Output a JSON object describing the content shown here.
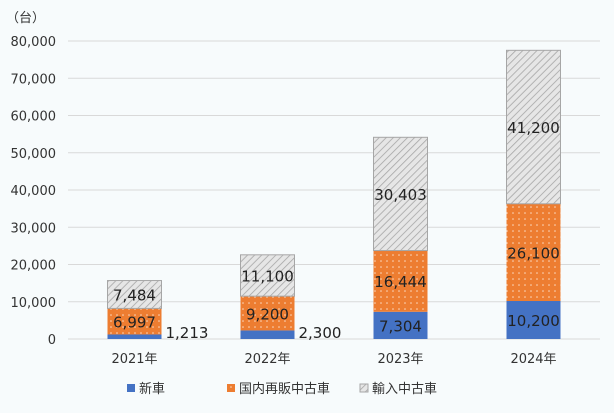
{
  "chart_data": {
    "type": "bar",
    "stacked": true,
    "unit_label": "（台）",
    "categories": [
      "2021年",
      "2022年",
      "2023年",
      "2024年"
    ],
    "series": [
      {
        "name": "新車",
        "values": [
          1213,
          2300,
          7304,
          10200
        ],
        "color": "#4472c4",
        "labels": [
          "1,213",
          "2,300",
          "7,304",
          "10,200"
        ]
      },
      {
        "name": "国内再販中古車",
        "values": [
          6997,
          9200,
          16444,
          26100
        ],
        "color": "#ed7d31",
        "labels": [
          "6,997",
          "9,200",
          "16,444",
          "26,100"
        ]
      },
      {
        "name": "輸入中古車",
        "values": [
          7484,
          11100,
          30403,
          41200
        ],
        "color": "#d0d0d0",
        "labels": [
          "7,484",
          "11,100",
          "30,403",
          "41,200"
        ]
      }
    ],
    "ylim": [
      0,
      80000
    ],
    "yticks": [
      "0",
      "10,000",
      "20,000",
      "30,000",
      "40,000",
      "50,000",
      "60,000",
      "70,000",
      "80,000"
    ],
    "grid": true,
    "legend": "bottom"
  }
}
